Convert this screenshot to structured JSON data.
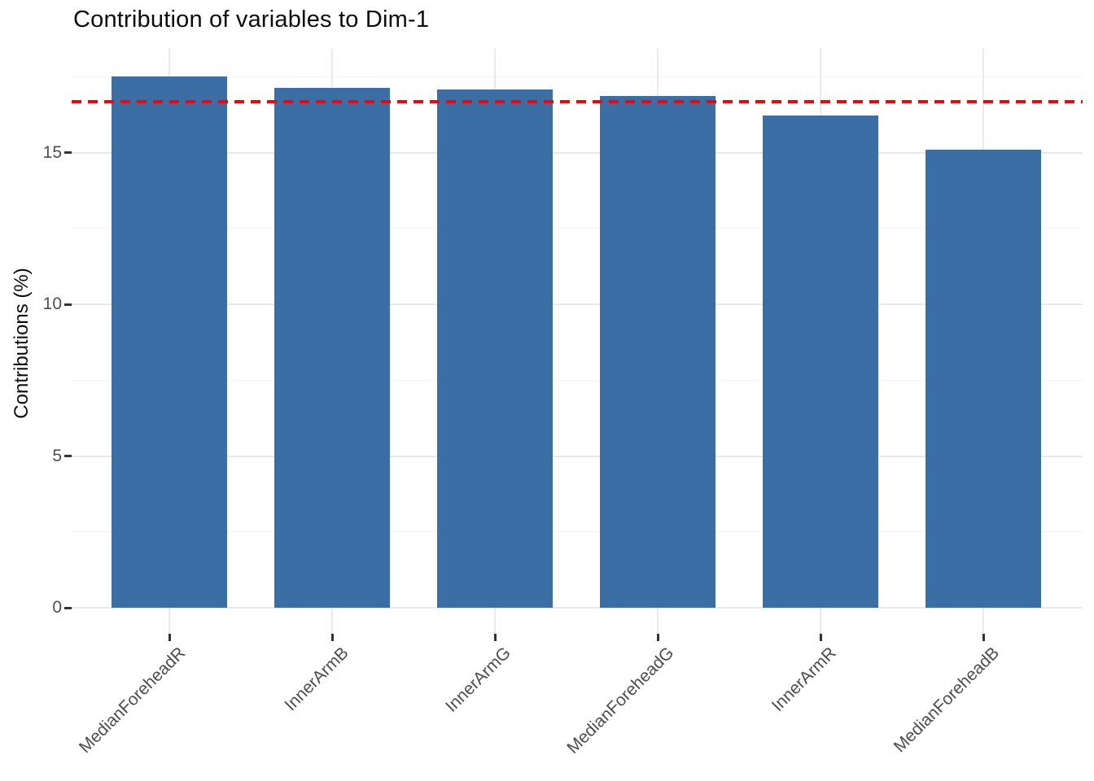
{
  "title": "Contribution of variables to Dim-1",
  "y_axis_title": "Contributions (%)",
  "colors": {
    "bar_fill": "#3a6ea5",
    "reference_line": "#ff0000",
    "grid_major": "#e9e9e9",
    "grid_minor": "#f3f3f3",
    "tick_label_text": "#4d4d4d",
    "title_text": "#0d0d0d"
  },
  "chart_data": {
    "type": "bar",
    "title": "Contribution of variables to Dim-1",
    "xlabel": "",
    "ylabel": "Contributions (%)",
    "categories": [
      "MedianForeheadR",
      "InnerArmB",
      "InnerArmG",
      "MedianForeheadG",
      "InnerArmR",
      "MedianForeheadB"
    ],
    "values": [
      17.5,
      17.13,
      17.07,
      16.85,
      16.21,
      15.09
    ],
    "reference_line": 16.67,
    "reference_line_style": "dashed",
    "reference_line_color": "#ff0000",
    "y_ticks": [
      0,
      5,
      10,
      15
    ],
    "y_minor_ticks": [
      2.5,
      7.5,
      12.5,
      17.5
    ],
    "ylim": [
      0,
      18.4
    ],
    "grid": true,
    "legend": false,
    "x_label_rotation_deg": 45
  }
}
